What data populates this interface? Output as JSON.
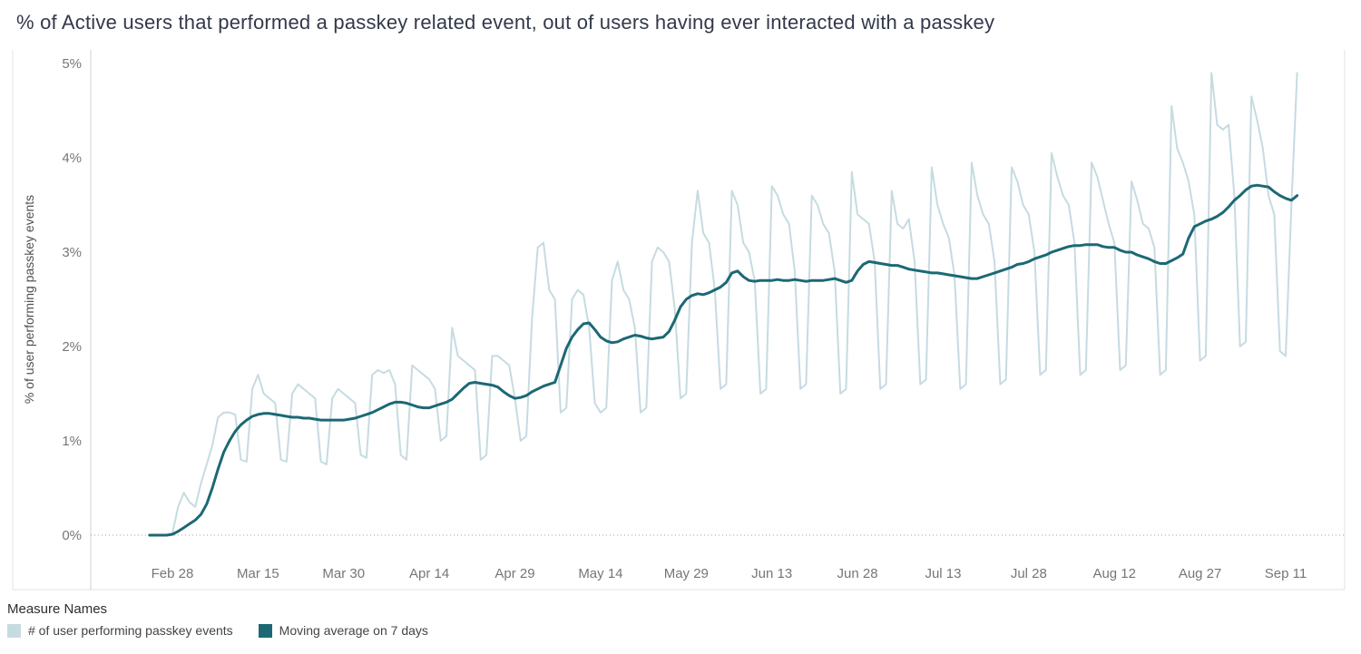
{
  "title": "% of Active users that performed a passkey related event, out of users having ever interacted with a passkey",
  "colors": {
    "background": "#ffffff",
    "title_text": "#32394a",
    "axis_text": "#767676",
    "axis_label_text": "#4f4f4f",
    "axis_line": "#d2d2d2",
    "frame_line": "#e3e3e3",
    "zero_line": "#b5b5b5",
    "daily_series": "#c6dbe1",
    "moving_average_series": "#1c6875"
  },
  "legend": {
    "title": "Measure Names",
    "items": [
      {
        "label": "# of user performing passkey events",
        "color": "#c6dbe1"
      },
      {
        "label": "Moving average on 7 days",
        "color": "#1c6875"
      }
    ]
  },
  "chart_data": {
    "type": "line",
    "title": "% of Active users that performed a passkey related event, out of users having ever interacted with a passkey",
    "xlabel": "",
    "ylabel": "% of user performing passkey events",
    "ylim": [
      0,
      5
    ],
    "grid": "dotted line at 0% only",
    "legend_position": "bottom-left",
    "y_ticks": [
      {
        "value": 0,
        "label": "0%"
      },
      {
        "value": 1,
        "label": "1%"
      },
      {
        "value": 2,
        "label": "2%"
      },
      {
        "value": 3,
        "label": "3%"
      },
      {
        "value": 4,
        "label": "4%"
      },
      {
        "value": 5,
        "label": "5%"
      }
    ],
    "x_ticks": [
      {
        "day": 4,
        "label": "Feb 28"
      },
      {
        "day": 19,
        "label": "Mar 15"
      },
      {
        "day": 34,
        "label": "Mar 30"
      },
      {
        "day": 49,
        "label": "Apr 14"
      },
      {
        "day": 64,
        "label": "Apr 29"
      },
      {
        "day": 79,
        "label": "May 14"
      },
      {
        "day": 94,
        "label": "May 29"
      },
      {
        "day": 109,
        "label": "Jun 13"
      },
      {
        "day": 124,
        "label": "Jun 28"
      },
      {
        "day": 139,
        "label": "Jul 13"
      },
      {
        "day": 154,
        "label": "Jul 28"
      },
      {
        "day": 169,
        "label": "Aug 12"
      },
      {
        "day": 184,
        "label": "Aug 27"
      },
      {
        "day": 199,
        "label": "Sep 11"
      }
    ],
    "series": [
      {
        "key": "daily",
        "name": "# of user performing passkey events",
        "color": "#c6dbe1",
        "stroke_width": 2,
        "start_day": 0,
        "values_pct": [
          0,
          0,
          0,
          0,
          0.02,
          0.3,
          0.45,
          0.35,
          0.3,
          0.55,
          0.75,
          0.95,
          1.25,
          1.3,
          1.3,
          1.28,
          0.8,
          0.78,
          1.55,
          1.7,
          1.5,
          1.45,
          1.4,
          0.8,
          0.78,
          1.5,
          1.6,
          1.55,
          1.5,
          1.45,
          0.78,
          0.75,
          1.45,
          1.55,
          1.5,
          1.45,
          1.4,
          0.85,
          0.82,
          1.7,
          1.75,
          1.72,
          1.75,
          1.6,
          0.85,
          0.8,
          1.8,
          1.75,
          1.7,
          1.65,
          1.55,
          1.0,
          1.05,
          2.2,
          1.9,
          1.85,
          1.8,
          1.75,
          0.8,
          0.85,
          1.9,
          1.9,
          1.85,
          1.8,
          1.45,
          1.0,
          1.05,
          2.3,
          3.05,
          3.1,
          2.6,
          2.5,
          1.3,
          1.35,
          2.5,
          2.6,
          2.55,
          2.2,
          1.4,
          1.3,
          1.35,
          2.7,
          2.9,
          2.6,
          2.5,
          2.2,
          1.3,
          1.35,
          2.9,
          3.05,
          3.0,
          2.9,
          2.4,
          1.45,
          1.5,
          3.1,
          3.65,
          3.2,
          3.1,
          2.6,
          1.55,
          1.6,
          3.65,
          3.5,
          3.1,
          3.0,
          2.7,
          1.5,
          1.55,
          3.7,
          3.6,
          3.4,
          3.3,
          2.8,
          1.55,
          1.6,
          3.6,
          3.5,
          3.3,
          3.2,
          2.8,
          1.5,
          1.55,
          3.85,
          3.4,
          3.35,
          3.3,
          2.9,
          1.55,
          1.6,
          3.65,
          3.3,
          3.25,
          3.35,
          2.9,
          1.6,
          1.65,
          3.9,
          3.5,
          3.3,
          3.15,
          2.75,
          1.55,
          1.6,
          3.95,
          3.6,
          3.4,
          3.3,
          2.9,
          1.6,
          1.65,
          3.9,
          3.75,
          3.5,
          3.4,
          3.0,
          1.7,
          1.75,
          4.05,
          3.8,
          3.6,
          3.5,
          3.1,
          1.7,
          1.75,
          3.95,
          3.8,
          3.55,
          3.3,
          3.1,
          1.75,
          1.8,
          3.75,
          3.55,
          3.3,
          3.25,
          3.05,
          1.7,
          1.75,
          4.55,
          4.1,
          3.95,
          3.75,
          3.4,
          1.85,
          1.9,
          4.9,
          4.35,
          4.3,
          4.35,
          3.6,
          2.0,
          2.05,
          4.65,
          4.4,
          4.1,
          3.6,
          3.4,
          1.95,
          1.9,
          3.5,
          4.9
        ]
      },
      {
        "key": "moving-average",
        "name": "Moving average on 7 days",
        "color": "#1c6875",
        "stroke_width": 3,
        "start_day": 0,
        "values_pct": [
          0,
          0,
          0,
          0,
          0.01,
          0.04,
          0.08,
          0.12,
          0.16,
          0.22,
          0.33,
          0.5,
          0.7,
          0.88,
          1.0,
          1.1,
          1.17,
          1.22,
          1.26,
          1.28,
          1.29,
          1.29,
          1.28,
          1.27,
          1.26,
          1.25,
          1.25,
          1.24,
          1.24,
          1.23,
          1.22,
          1.22,
          1.22,
          1.22,
          1.22,
          1.23,
          1.24,
          1.26,
          1.28,
          1.3,
          1.33,
          1.36,
          1.39,
          1.41,
          1.41,
          1.4,
          1.38,
          1.36,
          1.35,
          1.35,
          1.37,
          1.39,
          1.41,
          1.44,
          1.5,
          1.56,
          1.61,
          1.62,
          1.61,
          1.6,
          1.59,
          1.57,
          1.52,
          1.48,
          1.45,
          1.46,
          1.48,
          1.52,
          1.55,
          1.58,
          1.6,
          1.62,
          1.8,
          1.98,
          2.1,
          2.18,
          2.24,
          2.25,
          2.18,
          2.1,
          2.06,
          2.04,
          2.05,
          2.08,
          2.1,
          2.12,
          2.11,
          2.09,
          2.08,
          2.09,
          2.1,
          2.16,
          2.28,
          2.42,
          2.5,
          2.54,
          2.56,
          2.55,
          2.57,
          2.6,
          2.63,
          2.68,
          2.78,
          2.8,
          2.74,
          2.7,
          2.69,
          2.7,
          2.7,
          2.7,
          2.71,
          2.7,
          2.7,
          2.71,
          2.7,
          2.69,
          2.7,
          2.7,
          2.7,
          2.71,
          2.72,
          2.7,
          2.68,
          2.7,
          2.8,
          2.87,
          2.9,
          2.89,
          2.88,
          2.87,
          2.86,
          2.86,
          2.84,
          2.82,
          2.81,
          2.8,
          2.79,
          2.78,
          2.78,
          2.77,
          2.76,
          2.75,
          2.74,
          2.73,
          2.72,
          2.72,
          2.74,
          2.76,
          2.78,
          2.8,
          2.82,
          2.84,
          2.87,
          2.88,
          2.9,
          2.93,
          2.95,
          2.97,
          3.0,
          3.02,
          3.04,
          3.06,
          3.07,
          3.07,
          3.08,
          3.08,
          3.08,
          3.06,
          3.05,
          3.05,
          3.02,
          3.0,
          3.0,
          2.97,
          2.95,
          2.93,
          2.9,
          2.88,
          2.88,
          2.91,
          2.94,
          2.98,
          3.15,
          3.27,
          3.3,
          3.33,
          3.35,
          3.38,
          3.42,
          3.48,
          3.55,
          3.6,
          3.66,
          3.7,
          3.71,
          3.7,
          3.69,
          3.64,
          3.6,
          3.57,
          3.55,
          3.6
        ]
      }
    ]
  }
}
